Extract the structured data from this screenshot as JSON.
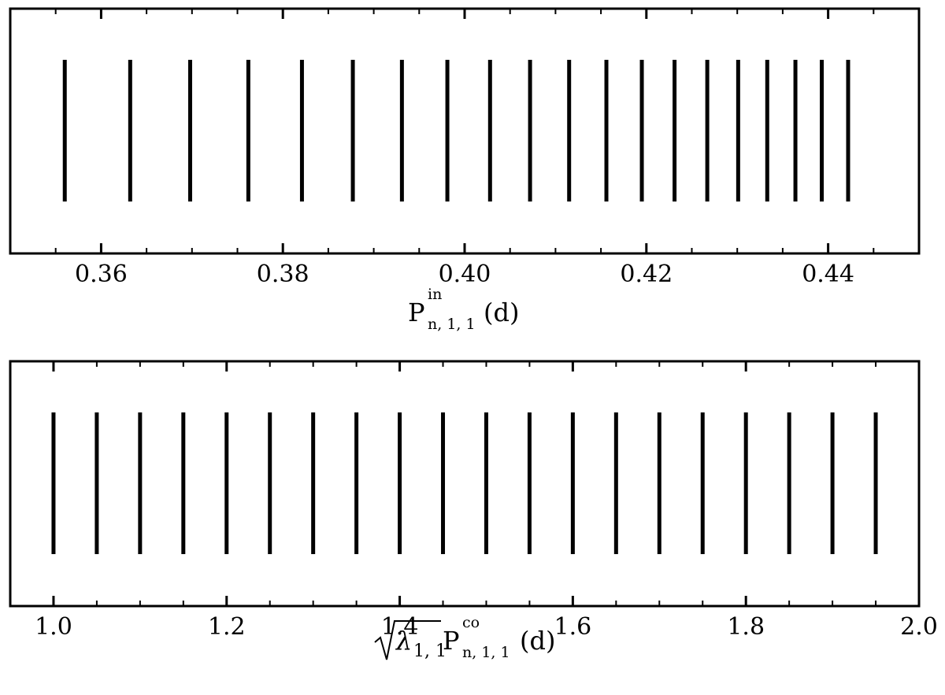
{
  "chart_data": [
    {
      "type": "eventplot",
      "xlabel": {
        "base": "P",
        "sup": "in",
        "sub": "n, 1, 1",
        "unit": "(d)"
      },
      "xlim": [
        0.35,
        0.45
      ],
      "xticks": [
        0.36,
        0.38,
        {
          "value": 0.4,
          "label": "0.40"
        },
        0.42,
        0.44
      ],
      "xminorticks": [
        0.35,
        0.355,
        0.36,
        0.365,
        0.37,
        0.375,
        0.38,
        0.385,
        0.39,
        0.395,
        0.4,
        0.405,
        0.41,
        0.415,
        0.42,
        0.425,
        0.43,
        0.435,
        0.44,
        0.445,
        0.45
      ],
      "series": [
        {
          "color": "#000000",
          "values": [
            0.356,
            0.3632,
            0.3698,
            0.3762,
            0.3821,
            0.3877,
            0.3931,
            0.3981,
            0.4028,
            0.4072,
            0.4115,
            0.4156,
            0.4195,
            0.4231,
            0.4267,
            0.4301,
            0.4333,
            0.4364,
            0.4393,
            0.4422
          ]
        }
      ]
    },
    {
      "type": "eventplot",
      "xlabel": {
        "root": "λ",
        "root_sub": "1, 1",
        "base": "P",
        "sup": "co",
        "sub": "n, 1, 1",
        "unit": "(d)"
      },
      "xlim": [
        0.95,
        2.0
      ],
      "xticks": [
        {
          "value": 1.0,
          "label": "1.0"
        },
        1.2,
        1.4,
        1.6,
        1.8,
        {
          "value": 2.0,
          "label": "2.0"
        }
      ],
      "xminorticks": [
        0.95,
        1.0,
        1.05,
        1.1,
        1.15,
        1.2,
        1.25,
        1.3,
        1.35,
        1.4,
        1.45,
        1.5,
        1.55,
        1.6,
        1.65,
        1.7,
        1.75,
        1.8,
        1.85,
        1.9,
        1.95,
        2.0
      ],
      "series": [
        {
          "color": "#000000",
          "values": [
            1.0,
            1.05,
            1.1,
            1.15,
            1.2,
            1.25,
            1.3,
            1.35,
            1.4,
            1.45,
            1.5,
            1.55,
            1.6,
            1.65,
            1.7,
            1.75,
            1.8,
            1.85,
            1.9,
            1.95
          ]
        }
      ]
    }
  ]
}
